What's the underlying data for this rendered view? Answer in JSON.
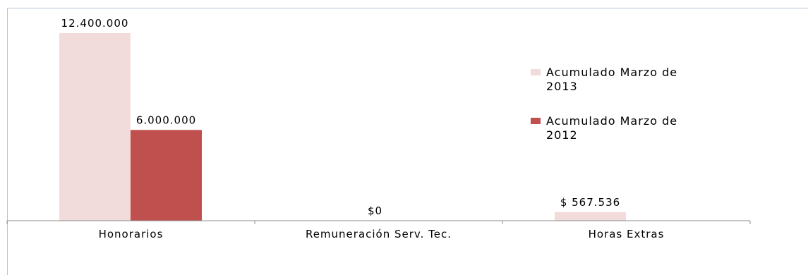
{
  "chart_data": {
    "type": "bar",
    "title": "",
    "xlabel": "",
    "ylabel": "",
    "categories": [
      "Honorarios",
      "Remuneración Serv. Tec.",
      "Horas Extras"
    ],
    "series": [
      {
        "name": "Acumulado Marzo de 2013",
        "color": "#f2dcdb",
        "values": [
          12400000,
          0,
          567536
        ],
        "labels": [
          "12.400.000",
          "$0",
          "$ 567.536"
        ]
      },
      {
        "name": "Acumulado Marzo de 2012",
        "color": "#c0504d",
        "values": [
          6000000,
          0,
          0
        ],
        "labels": [
          "6.000.000",
          "",
          ""
        ]
      }
    ],
    "ylim": [
      0,
      12400000
    ],
    "grid": false,
    "legend_position": "right"
  }
}
